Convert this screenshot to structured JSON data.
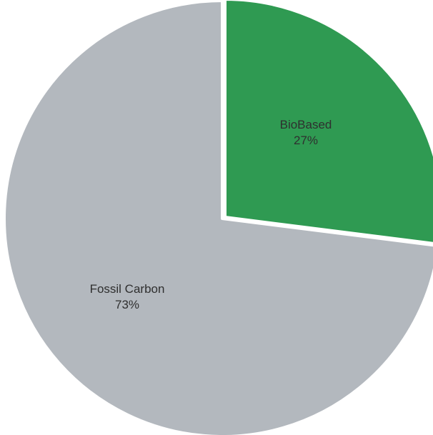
{
  "chart_data": {
    "type": "pie",
    "title": "",
    "slices": [
      {
        "label": "BioBased",
        "value": 27,
        "value_label": "27%",
        "color": "#2f9a52"
      },
      {
        "label": "Fossil Carbon",
        "value": 73,
        "value_label": "73%",
        "color": "#b3b8be"
      }
    ],
    "legend": "none",
    "start_angle": "12 o'clock",
    "direction": "clockwise",
    "slice_border_color": "#ffffff"
  }
}
